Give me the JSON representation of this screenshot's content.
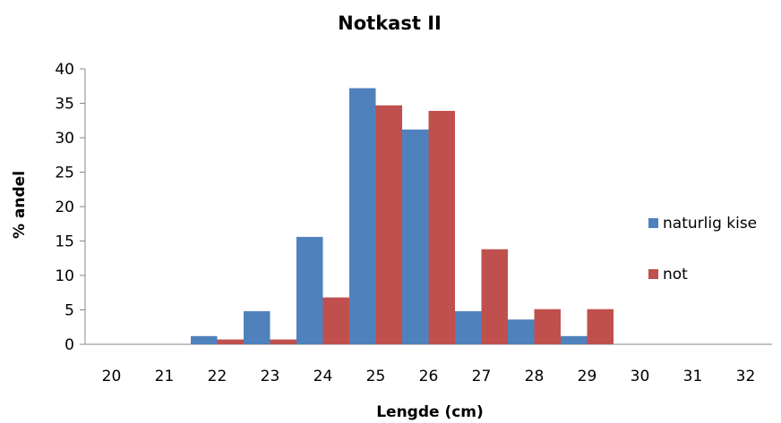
{
  "chart_data": {
    "type": "bar",
    "title": "Notkast II",
    "xlabel": "Lengde (cm)",
    "ylabel": "% andel",
    "ylim": [
      0,
      40
    ],
    "yticks": [
      0,
      5,
      10,
      15,
      20,
      25,
      30,
      35,
      40
    ],
    "categories": [
      "20",
      "21",
      "22",
      "23",
      "24",
      "25",
      "26",
      "27",
      "28",
      "29",
      "30",
      "31",
      "32"
    ],
    "series": [
      {
        "name": "naturlig kise",
        "color": "#4F81BD",
        "values": [
          0,
          0,
          1.2,
          4.8,
          15.6,
          37.2,
          31.2,
          4.8,
          3.6,
          1.2,
          0,
          0,
          0
        ]
      },
      {
        "name": "not",
        "color": "#C0504D",
        "values": [
          0,
          0,
          0.7,
          0.7,
          6.8,
          34.7,
          33.9,
          13.8,
          5.1,
          5.1,
          0,
          0,
          0
        ]
      }
    ],
    "grid": false,
    "legend_position": "right"
  }
}
